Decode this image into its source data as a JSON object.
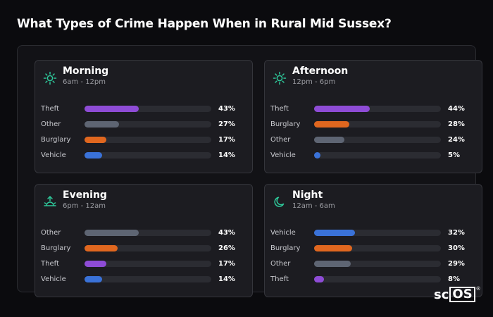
{
  "title": "What Types of Crime Happen When in Rural Mid Sussex?",
  "logo": {
    "left": "sc",
    "box": "OS",
    "mark": "®"
  },
  "colors": {
    "purple": "#8e4cd6",
    "gray": "#5e6573",
    "orange": "#e0671f",
    "blue": "#3a72d8",
    "accent": "#2ec89a"
  },
  "chart_data": {
    "type": "bar",
    "xlim": [
      0,
      100
    ],
    "panels": [
      {
        "name": "Morning",
        "range": "6am - 12pm",
        "icon": "sun-icon",
        "categories": [
          "Theft",
          "Other",
          "Burglary",
          "Vehicle"
        ],
        "values": [
          43,
          27,
          17,
          14
        ],
        "labels": [
          "43%",
          "27%",
          "17%",
          "14%"
        ],
        "colors": [
          "#8e4cd6",
          "#5e6573",
          "#e0671f",
          "#3a72d8"
        ]
      },
      {
        "name": "Afternoon",
        "range": "12pm - 6pm",
        "icon": "sun-icon",
        "categories": [
          "Theft",
          "Burglary",
          "Other",
          "Vehicle"
        ],
        "values": [
          44,
          28,
          24,
          5
        ],
        "labels": [
          "44%",
          "28%",
          "24%",
          "5%"
        ],
        "colors": [
          "#8e4cd6",
          "#e0671f",
          "#5e6573",
          "#3a72d8"
        ]
      },
      {
        "name": "Evening",
        "range": "6pm - 12am",
        "icon": "sunset-icon",
        "categories": [
          "Other",
          "Burglary",
          "Theft",
          "Vehicle"
        ],
        "values": [
          43,
          26,
          17,
          14
        ],
        "labels": [
          "43%",
          "26%",
          "17%",
          "14%"
        ],
        "colors": [
          "#5e6573",
          "#e0671f",
          "#8e4cd6",
          "#3a72d8"
        ]
      },
      {
        "name": "Night",
        "range": "12am - 6am",
        "icon": "moon-icon",
        "categories": [
          "Vehicle",
          "Burglary",
          "Other",
          "Theft"
        ],
        "values": [
          32,
          30,
          29,
          8
        ],
        "labels": [
          "32%",
          "30%",
          "29%",
          "8%"
        ],
        "colors": [
          "#3a72d8",
          "#e0671f",
          "#5e6573",
          "#8e4cd6"
        ]
      }
    ]
  }
}
